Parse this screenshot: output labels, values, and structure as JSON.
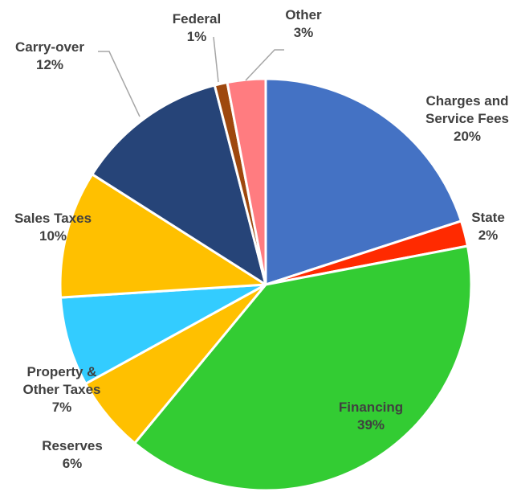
{
  "chart_data": {
    "type": "pie",
    "categories": [
      "Charges and Service Fees",
      "State",
      "Financing",
      "Reserves",
      "Property & Other Taxes",
      "Sales Taxes",
      "Carry-over",
      "Federal",
      "Other"
    ],
    "values": [
      20,
      2,
      39,
      6,
      7,
      10,
      12,
      1,
      3
    ],
    "value_labels": [
      "20%",
      "2%",
      "39%",
      "6%",
      "7%",
      "10%",
      "12%",
      "1%",
      "3%"
    ],
    "colors": [
      "#4472c4",
      "#ff2a00",
      "#33cc33",
      "#ffc000",
      "#33ccff",
      "#ffc000",
      "#264478",
      "#9e480e",
      "#ff7c80"
    ]
  }
}
